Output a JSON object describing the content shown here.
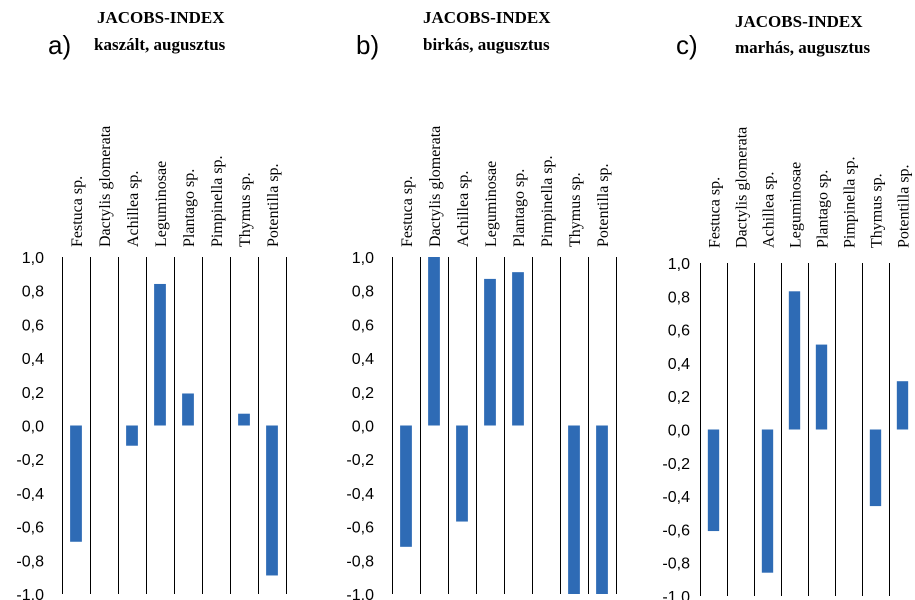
{
  "colors": {
    "bar": "#2e6bb5",
    "grid": "#000000",
    "text": "#000000"
  },
  "chart_data": [
    {
      "type": "bar",
      "panel_label": "a)",
      "title": "JACOBS-INDEX",
      "subtitle": "kaszált, augusztus",
      "categories": [
        "Festuca sp.",
        "Dactylis glomerata",
        "Achillea sp.",
        "Leguminosae",
        "Plantago sp.",
        "Pimpinella sp.",
        "Thymus sp.",
        "Potentilla sp."
      ],
      "values": [
        -0.69,
        0.0,
        -0.12,
        0.84,
        0.19,
        0.0,
        0.07,
        -0.89
      ],
      "ylim": [
        -1.0,
        1.0
      ],
      "yticks": [
        "1,0",
        "0,8",
        "0,6",
        "0,4",
        "0,2",
        "0,0",
        "-0,2",
        "-0,4",
        "-0,6",
        "-0,8",
        "-1,0"
      ],
      "grid": "vertical category separators"
    },
    {
      "type": "bar",
      "panel_label": "b)",
      "title": "JACOBS-INDEX",
      "subtitle": "birkás, augusztus",
      "categories": [
        "Festuca sp.",
        "Dactylis glomerata",
        "Achillea sp.",
        "Leguminosae",
        "Plantago sp.",
        "Pimpinella sp.",
        "Thymus sp.",
        "Potentilla sp."
      ],
      "values": [
        -0.72,
        1.0,
        -0.57,
        0.87,
        0.91,
        0.0,
        -1.0,
        -1.0
      ],
      "ylim": [
        -1.0,
        1.0
      ],
      "yticks": [
        "1,0",
        "0,8",
        "0,6",
        "0,4",
        "0,2",
        "0,0",
        "-0,2",
        "-0,4",
        "-0,6",
        "-0,8",
        "-1,0"
      ],
      "grid": "vertical category separators"
    },
    {
      "type": "bar",
      "panel_label": "c)",
      "title": "JACOBS-INDEX",
      "subtitle": "marhás, augusztus",
      "categories": [
        "Festuca sp.",
        "Dactylis glomerata",
        "Achillea sp.",
        "Leguminosae",
        "Plantago sp.",
        "Pimpinella sp.",
        "Thymus sp.",
        "Potentilla sp."
      ],
      "values": [
        -0.61,
        0.0,
        -0.86,
        0.83,
        0.51,
        0.0,
        -0.46,
        0.29
      ],
      "ylim": [
        -1.0,
        1.0
      ],
      "yticks": [
        "1,0",
        "0,8",
        "0,6",
        "0,4",
        "0,2",
        "0,0",
        "-0,2",
        "-0,4",
        "-0,6",
        "-0,8",
        "-1,0"
      ],
      "grid": "vertical category separators"
    }
  ]
}
